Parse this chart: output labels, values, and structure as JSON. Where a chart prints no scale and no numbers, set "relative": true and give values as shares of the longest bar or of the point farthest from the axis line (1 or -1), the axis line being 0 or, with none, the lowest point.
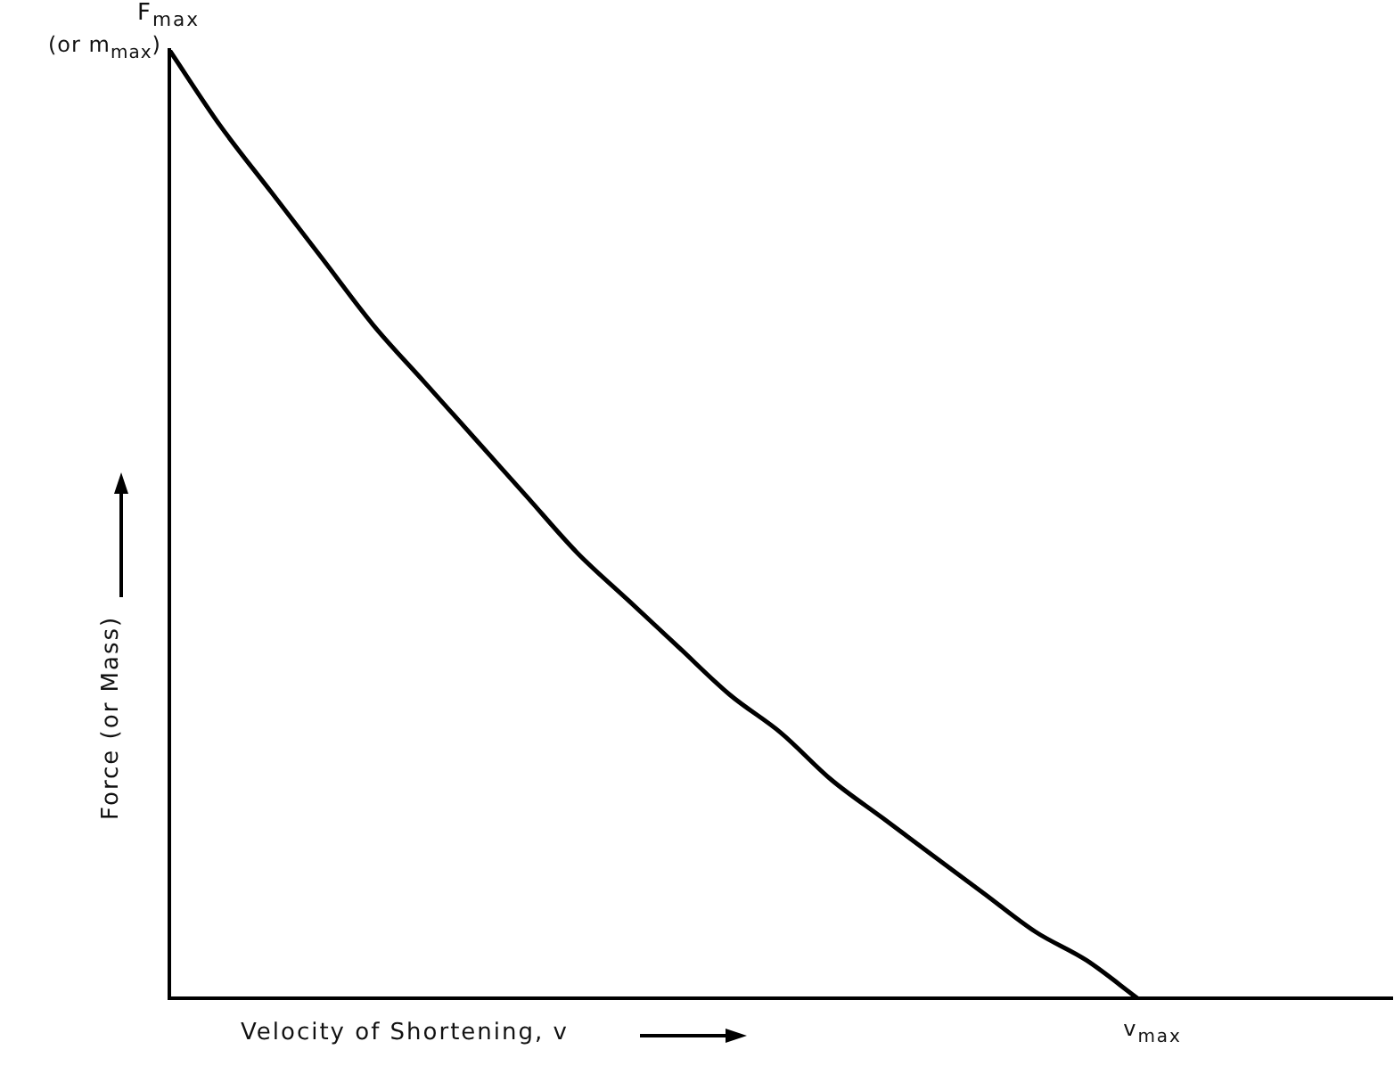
{
  "chart_data": {
    "type": "line",
    "relative": true,
    "xlabel": "Velocity of Shortening,  v",
    "ylabel": "Force   (or Mass)",
    "categories": [
      null,
      null,
      null,
      null,
      null,
      null,
      null,
      null,
      null,
      null,
      null,
      null,
      null,
      null,
      null,
      null,
      null,
      null,
      null,
      null,
      null,
      null,
      null,
      null,
      null
    ],
    "values": [
      1,
      0.92,
      0.85,
      0.78,
      0.71,
      0.65,
      0.59,
      0.53,
      0.47,
      0.42,
      0.37,
      0.32,
      0.28,
      0.23,
      0.19,
      0.15,
      0.11,
      0.07,
      0.04,
      0,
      null,
      null,
      null,
      null,
      null
    ],
    "color": "#000000",
    "marker": "none",
    "line_style": "solid",
    "annotations": [
      "F$_{max}$",
      "(or m$_{max}$)",
      "v$_{max}$"
    ]
  }
}
